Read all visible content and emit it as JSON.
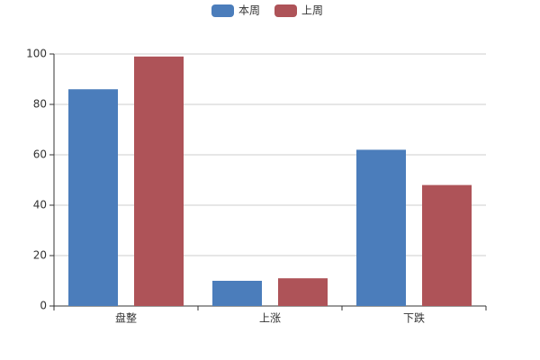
{
  "chart_data": {
    "type": "bar",
    "categories": [
      "盘整",
      "上涨",
      "下跌"
    ],
    "series": [
      {
        "name": "本周",
        "color": "#4b7dbb",
        "values": [
          86,
          10,
          62
        ]
      },
      {
        "name": "上周",
        "color": "#ae5358",
        "values": [
          99,
          11,
          48
        ]
      }
    ],
    "ylim": [
      0,
      100
    ],
    "yticks": [
      0,
      20,
      40,
      60,
      80,
      100
    ],
    "grid": true,
    "legend": "top"
  }
}
